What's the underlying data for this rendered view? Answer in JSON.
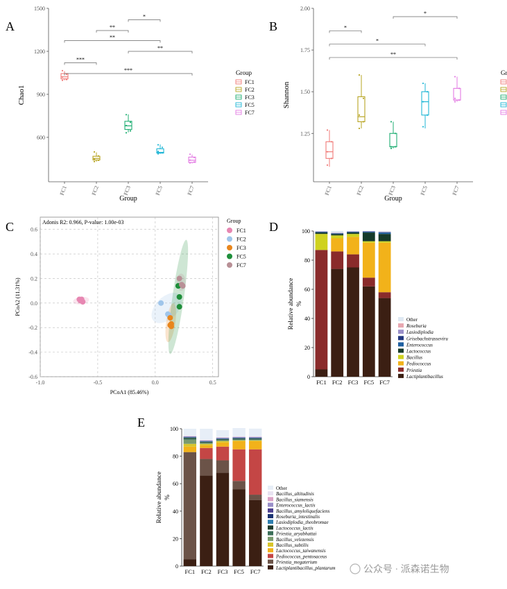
{
  "panels": [
    "A",
    "B",
    "C",
    "D",
    "E"
  ],
  "watermark": "公众号 · 派森诺生物",
  "group_colors": {
    "FC1": "#f07b78",
    "FC2": "#b7a422",
    "FC3": "#1fae72",
    "FC5": "#1fb6d6",
    "FC7": "#e37ae3"
  },
  "chart_data": [
    {
      "panel": "A",
      "type": "box",
      "title": "",
      "xlabel": "Group",
      "ylabel": "Chao1",
      "ylim": [
        290,
        1500
      ],
      "yticks": [
        600,
        900,
        1200,
        1500
      ],
      "categories": [
        "FC1",
        "FC2",
        "FC3",
        "FC5",
        "FC7"
      ],
      "legend": {
        "title": "Group",
        "placement": "right"
      },
      "boxes": [
        {
          "group": "FC1",
          "min": 998,
          "q1": 1008,
          "median": 1022,
          "q3": 1045,
          "max": 1062,
          "points": [
            998,
            1003,
            1020,
            1040,
            1065
          ]
        },
        {
          "group": "FC2",
          "min": 430,
          "q1": 442,
          "median": 453,
          "q3": 468,
          "max": 495,
          "points": [
            431,
            440,
            450,
            470,
            498
          ]
        },
        {
          "group": "FC3",
          "min": 635,
          "q1": 655,
          "median": 680,
          "q3": 712,
          "max": 760,
          "points": [
            632,
            645,
            682,
            705,
            758
          ]
        },
        {
          "group": "FC5",
          "min": 485,
          "q1": 490,
          "median": 495,
          "q3": 520,
          "max": 550,
          "points": [
            485,
            492,
            502,
            530,
            548
          ]
        },
        {
          "group": "FC7",
          "min": 418,
          "q1": 425,
          "median": 440,
          "q3": 462,
          "max": 480,
          "points": [
            422,
            428,
            441,
            460,
            482
          ]
        }
      ],
      "significance": [
        {
          "groups": [
            "FC2",
            "FC3"
          ],
          "label": "**",
          "y": 1345
        },
        {
          "groups": [
            "FC3",
            "FC5"
          ],
          "label": "*",
          "y": 1420
        },
        {
          "groups": [
            "FC1",
            "FC5"
          ],
          "label": "**",
          "y": 1275
        },
        {
          "groups": [
            "FC3",
            "FC7"
          ],
          "label": "**",
          "y": 1200
        },
        {
          "groups": [
            "FC1",
            "FC2"
          ],
          "label": "***",
          "y": 1120
        },
        {
          "groups": [
            "FC1",
            "FC7"
          ],
          "label": "***",
          "y": 1045
        }
      ]
    },
    {
      "panel": "B",
      "type": "box",
      "title": "",
      "xlabel": "Group",
      "ylabel": "Shannon",
      "ylim": [
        0.96,
        2.0
      ],
      "yticks": [
        1.25,
        1.5,
        1.75,
        2.0
      ],
      "categories": [
        "FC1",
        "FC2",
        "FC3",
        "FC5",
        "FC7"
      ],
      "legend": {
        "title": "Group",
        "placement": "right"
      },
      "boxes": [
        {
          "group": "FC1",
          "min": 1.05,
          "q1": 1.1,
          "median": 1.14,
          "q3": 1.2,
          "max": 1.27,
          "points": [
            1.06,
            1.1,
            1.14,
            1.2,
            1.27
          ]
        },
        {
          "group": "FC2",
          "min": 1.28,
          "q1": 1.32,
          "median": 1.35,
          "q3": 1.47,
          "max": 1.6,
          "points": [
            1.28,
            1.32,
            1.36,
            1.46,
            1.6
          ]
        },
        {
          "group": "FC3",
          "min": 1.16,
          "q1": 1.17,
          "median": 1.17,
          "q3": 1.25,
          "max": 1.32,
          "points": [
            1.16,
            1.17,
            1.17,
            1.25,
            1.32
          ]
        },
        {
          "group": "FC5",
          "min": 1.28,
          "q1": 1.36,
          "median": 1.44,
          "q3": 1.5,
          "max": 1.55,
          "points": [
            1.29,
            1.36,
            1.44,
            1.5,
            1.55
          ]
        },
        {
          "group": "FC7",
          "min": 1.44,
          "q1": 1.45,
          "median": 1.45,
          "q3": 1.52,
          "max": 1.59,
          "points": [
            1.44,
            1.45,
            1.46,
            1.52,
            1.59
          ]
        }
      ],
      "significance": [
        {
          "groups": [
            "FC3",
            "FC7"
          ],
          "label": "*",
          "y": 1.95
        },
        {
          "groups": [
            "FC1",
            "FC2"
          ],
          "label": "*",
          "y": 1.865
        },
        {
          "groups": [
            "FC1",
            "FC5"
          ],
          "label": "*",
          "y": 1.785
        },
        {
          "groups": [
            "FC1",
            "FC7"
          ],
          "label": "**",
          "y": 1.705
        }
      ]
    },
    {
      "panel": "C",
      "type": "scatter",
      "title": "",
      "annotation": "Adonis  R2:  0.966,  P-value:  1.00e-03",
      "xlabel": "PCoA1  (85.46%)",
      "ylabel": "PCoA2  (11.31%)",
      "xlim": [
        -1.0,
        0.55
      ],
      "ylim": [
        -0.6,
        0.7
      ],
      "xticks": [
        -1.0,
        -0.5,
        0.0,
        0.5
      ],
      "yticks": [
        -0.6,
        -0.4,
        -0.2,
        0.0,
        0.2,
        0.4,
        0.6
      ],
      "grid": true,
      "legend": {
        "title": "Group",
        "placement": "right"
      },
      "series": [
        {
          "name": "FC1",
          "color": "#e787b2",
          "points": [
            [
              -0.66,
              0.03
            ],
            [
              -0.65,
              0.02
            ],
            [
              -0.64,
              0.02
            ],
            [
              -0.63,
              0.01
            ],
            [
              -0.64,
              0.03
            ]
          ],
          "ellipse": {
            "cx": -0.645,
            "cy": 0.02,
            "rx": 0.07,
            "ry": 0.03,
            "angle": -8
          }
        },
        {
          "name": "FC2",
          "color": "#9fc5ea",
          "points": [
            [
              0.05,
              0.0
            ],
            [
              0.11,
              -0.09
            ],
            [
              0.12,
              -0.1
            ]
          ],
          "ellipse": {
            "cx": 0.1,
            "cy": -0.04,
            "rx": 0.16,
            "ry": 0.09,
            "angle": -45
          }
        },
        {
          "name": "FC3",
          "color": "#e8861d",
          "points": [
            [
              0.13,
              -0.12
            ],
            [
              0.14,
              -0.17
            ],
            [
              0.14,
              -0.19
            ],
            [
              0.13,
              -0.18
            ]
          ],
          "ellipse": {
            "cx": 0.135,
            "cy": -0.16,
            "rx": 0.04,
            "ry": 0.16,
            "angle": 8
          }
        },
        {
          "name": "FC5",
          "color": "#1f8f3b",
          "points": [
            [
              0.2,
              0.14
            ],
            [
              0.21,
              0.05
            ],
            [
              0.21,
              -0.03
            ],
            [
              0.2,
              0.14
            ]
          ],
          "ellipse": {
            "cx": 0.2,
            "cy": 0.05,
            "rx": 0.05,
            "ry": 0.47,
            "angle": 8
          }
        },
        {
          "name": "FC7",
          "color": "#b89096",
          "points": [
            [
              0.21,
              0.2
            ],
            [
              0.23,
              0.15
            ],
            [
              0.24,
              0.14
            ]
          ],
          "ellipse": {
            "cx": 0.225,
            "cy": 0.17,
            "rx": 0.04,
            "ry": 0.07,
            "angle": 0
          }
        }
      ]
    },
    {
      "panel": "D",
      "type": "bar",
      "stacked": true,
      "title": "",
      "xlabel": "",
      "ylabel": "Relative abundance\n%",
      "ylim": [
        0,
        100
      ],
      "yticks": [
        0,
        20,
        40,
        60,
        80,
        100
      ],
      "categories": [
        "FC1",
        "FC2",
        "FC3",
        "FC5",
        "FC7"
      ],
      "legend": {
        "placement": "right"
      },
      "series": [
        {
          "name": "Lactiplantibacillus",
          "color": "#3b1f13",
          "values": [
            5,
            74,
            75,
            62,
            54
          ]
        },
        {
          "name": "Priestia",
          "color": "#8a2b2b",
          "values": [
            82,
            12,
            9,
            6,
            4
          ]
        },
        {
          "name": "Pediococcus",
          "color": "#f2b21a",
          "values": [
            0,
            9,
            12,
            24,
            34
          ]
        },
        {
          "name": "Bacillus",
          "color": "#cfd220",
          "values": [
            11,
            2,
            2,
            1,
            1
          ]
        },
        {
          "name": "Lactococcus",
          "color": "#163a2a",
          "values": [
            1,
            1,
            1,
            6,
            5
          ]
        },
        {
          "name": "Enterococcus",
          "color": "#1e5fa0",
          "values": [
            0.3,
            0.3,
            0.3,
            0.5,
            1
          ]
        },
        {
          "name": "Grisebachstrasseviru",
          "color": "#22377f",
          "values": [
            0.2,
            0.2,
            0.2,
            0.2,
            0.2
          ]
        },
        {
          "name": "Lasiodiplodia",
          "color": "#9a8fc9",
          "values": [
            0.2,
            0.2,
            0.2,
            0.2,
            0.2
          ]
        },
        {
          "name": "Roseburia",
          "color": "#e7a7b0",
          "values": [
            0.1,
            0.1,
            0.1,
            0.1,
            0.1
          ]
        },
        {
          "name": "Other",
          "color": "#dfe9f3",
          "values": [
            0.2,
            1.2,
            0.2,
            0.0,
            0.5
          ]
        }
      ]
    },
    {
      "panel": "E",
      "type": "bar",
      "stacked": true,
      "title": "",
      "xlabel": "",
      "ylabel": "Relative abundance\n%",
      "ylim": [
        0,
        100
      ],
      "yticks": [
        0,
        20,
        40,
        60,
        80,
        100
      ],
      "categories": [
        "FC1",
        "FC2",
        "FC3",
        "FC5",
        "FC7"
      ],
      "legend": {
        "placement": "right"
      },
      "series": [
        {
          "name": "Lactiplantibacillus_plantarum",
          "color": "#3b1f13",
          "values": [
            5,
            66,
            68,
            56,
            48
          ]
        },
        {
          "name": "Priestia_megaterium",
          "color": "#6b5348",
          "values": [
            78,
            12,
            9,
            6,
            4
          ]
        },
        {
          "name": "Pediococcus_pentosaceus",
          "color": "#c44645",
          "values": [
            0,
            8,
            10,
            23,
            33
          ]
        },
        {
          "name": "Lactococcus_taiwanensis",
          "color": "#f2b21a",
          "values": [
            4,
            2,
            3,
            6,
            6
          ]
        },
        {
          "name": "Bacillus_subtilis",
          "color": "#d8c52c",
          "values": [
            2,
            1,
            1,
            0.5,
            0.5
          ]
        },
        {
          "name": "Bacillus_velezensis",
          "color": "#7a9b6f",
          "values": [
            3,
            0.5,
            0.5,
            0.5,
            0.5
          ]
        },
        {
          "name": "Priestia_aryabhattai",
          "color": "#3c6e58",
          "values": [
            1,
            0.5,
            0.5,
            0.5,
            0.5
          ]
        },
        {
          "name": "Lactococcus_lactis",
          "color": "#1f3d2e",
          "values": [
            0.5,
            0.5,
            0.5,
            0.5,
            0.5
          ]
        },
        {
          "name": "Lasiodiplodia_theobromae",
          "color": "#2e7fb0",
          "values": [
            0.3,
            0.3,
            0.3,
            0.3,
            0.3
          ]
        },
        {
          "name": "Roseburia_intestinalis",
          "color": "#1c3473",
          "values": [
            0.2,
            0.2,
            0.2,
            0.2,
            0.2
          ]
        },
        {
          "name": "Bacillus_amyloliquefaciens",
          "color": "#4c3f8f",
          "values": [
            0.2,
            0.2,
            0.2,
            0.2,
            0.2
          ]
        },
        {
          "name": "Enterococcus_lactis",
          "color": "#9a8fc9",
          "values": [
            0.2,
            0.2,
            0.2,
            0.2,
            0.2
          ]
        },
        {
          "name": "Bacillus_siamensis",
          "color": "#dba3c6",
          "values": [
            0.2,
            0.2,
            0.2,
            0.2,
            0.2
          ]
        },
        {
          "name": "Bacillus_altitudinis",
          "color": "#e8e2f1",
          "values": [
            0.4,
            0.4,
            0.4,
            0.4,
            0.4
          ]
        },
        {
          "name": "Other",
          "color": "#e7eef7",
          "values": [
            5.0,
            8.0,
            5.0,
            6.0,
            5.6
          ]
        }
      ]
    }
  ]
}
